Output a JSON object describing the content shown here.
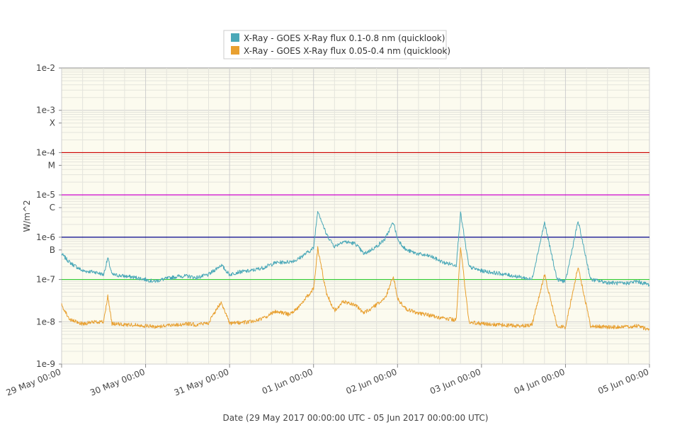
{
  "chart_data": {
    "type": "line",
    "title": "",
    "xlabel": "Date (29 May 2017 00:00:00 UTC - 05 Jun 2017 00:00:00 UTC)",
    "ylabel": "W/m^2",
    "y_scale": "log",
    "ylim": [
      "1e-9",
      "1e-2"
    ],
    "xlim": [
      "2017-05-29 00:00",
      "2017-06-05 00:00"
    ],
    "x_tick_labels": [
      "29 May 00:00",
      "30 May 00:00",
      "31 May 00:00",
      "01 Jun 00:00",
      "02 Jun 00:00",
      "03 Jun 00:00",
      "04 Jun 00:00",
      "05 Jun 00:00"
    ],
    "y_tick_labels": [
      {
        "label": "1e-2",
        "value": "1e-2"
      },
      {
        "label": "1e-3",
        "value": "1e-3"
      },
      {
        "label": "X",
        "value": "5e-4"
      },
      {
        "label": "1e-4",
        "value": "1e-4"
      },
      {
        "label": "M",
        "value": "5e-5"
      },
      {
        "label": "1e-5",
        "value": "1e-5"
      },
      {
        "label": "C",
        "value": "5e-6"
      },
      {
        "label": "1e-6",
        "value": "1e-6"
      },
      {
        "label": "B",
        "value": "5e-7"
      },
      {
        "label": "1e-7",
        "value": "1e-7"
      },
      {
        "label": "1e-8",
        "value": "1e-8"
      },
      {
        "label": "1e-9",
        "value": "1e-9"
      }
    ],
    "threshold_lines": [
      {
        "value": "1e-4",
        "color": "#cc0000"
      },
      {
        "value": "1e-5",
        "color": "#cc00cc"
      },
      {
        "value": "1e-6",
        "color": "#000088"
      },
      {
        "value": "1e-7",
        "color": "#33cc33"
      }
    ],
    "grid": true,
    "legend_position": "top-center",
    "background": "#fcfbef",
    "series": [
      {
        "name": "X-Ray - GOES X-Ray flux 0.1-0.8 nm (quicklook)",
        "color": "#4aa8b8",
        "x_days": [
          0,
          0.1,
          0.25,
          0.4,
          0.5,
          0.55,
          0.6,
          0.75,
          0.9,
          1.0,
          1.05,
          1.1,
          1.2,
          1.3,
          1.4,
          1.5,
          1.6,
          1.75,
          1.9,
          2.0,
          2.1,
          2.25,
          2.4,
          2.55,
          2.7,
          2.8,
          2.9,
          3.0,
          3.05,
          3.15,
          3.25,
          3.35,
          3.5,
          3.6,
          3.75,
          3.85,
          3.95,
          4.0,
          4.1,
          4.25,
          4.4,
          4.55,
          4.7,
          4.75,
          4.85,
          5.0,
          5.2,
          5.4,
          5.5,
          5.6,
          5.75,
          5.9,
          6.0,
          6.15,
          6.3,
          6.5,
          6.7,
          6.85,
          7.0
        ],
        "y": [
          4e-07,
          2.5e-07,
          1.6e-07,
          1.5e-07,
          1.3e-07,
          3.2e-07,
          1.3e-07,
          1.2e-07,
          1.1e-07,
          1e-07,
          9.5e-08,
          9e-08,
          1e-07,
          1.1e-07,
          1.2e-07,
          1.2e-07,
          1.1e-07,
          1.3e-07,
          2.2e-07,
          1.3e-07,
          1.5e-07,
          1.6e-07,
          1.9e-07,
          2.5e-07,
          2.6e-07,
          2.9e-07,
          4e-07,
          5.5e-07,
          4.4e-06,
          1.2e-06,
          6e-07,
          8e-07,
          7e-07,
          4e-07,
          6e-07,
          9e-07,
          2.3e-06,
          9e-07,
          5e-07,
          4e-07,
          3.5e-07,
          2.5e-07,
          2.2e-07,
          3.8e-06,
          2e-07,
          1.6e-07,
          1.4e-07,
          1.2e-07,
          1.1e-07,
          1e-07,
          2.2e-06,
          1e-07,
          9e-08,
          2.4e-06,
          1e-07,
          8.5e-08,
          8e-08,
          9e-08,
          7.5e-08
        ]
      },
      {
        "name": "X-Ray - GOES X-Ray flux 0.05-0.4 nm (quicklook)",
        "color": "#e8a030",
        "x_days": [
          0,
          0.1,
          0.25,
          0.4,
          0.5,
          0.55,
          0.6,
          0.75,
          0.9,
          1.0,
          1.05,
          1.1,
          1.2,
          1.3,
          1.4,
          1.5,
          1.6,
          1.75,
          1.9,
          2.0,
          2.1,
          2.25,
          2.4,
          2.55,
          2.7,
          2.8,
          2.9,
          3.0,
          3.05,
          3.15,
          3.25,
          3.35,
          3.5,
          3.6,
          3.75,
          3.85,
          3.95,
          4.0,
          4.1,
          4.25,
          4.4,
          4.55,
          4.7,
          4.75,
          4.85,
          5.0,
          5.2,
          5.4,
          5.5,
          5.6,
          5.75,
          5.9,
          6.0,
          6.15,
          6.3,
          6.5,
          6.7,
          6.85,
          7.0
        ],
        "y": [
          2.5e-08,
          1.1e-08,
          9e-09,
          1e-08,
          1e-08,
          4e-08,
          9e-09,
          8.5e-09,
          8.5e-09,
          8e-09,
          8e-09,
          7.5e-09,
          8e-09,
          8.5e-09,
          8.5e-09,
          9e-09,
          8.5e-09,
          9.5e-09,
          3e-08,
          9e-09,
          9.5e-09,
          1e-08,
          1.2e-08,
          1.8e-08,
          1.5e-08,
          2e-08,
          3.5e-08,
          6e-08,
          5.5e-07,
          5e-08,
          1.8e-08,
          3e-08,
          2.5e-08,
          1.6e-08,
          2.5e-08,
          3.5e-08,
          1.2e-07,
          3.5e-08,
          2e-08,
          1.6e-08,
          1.4e-08,
          1.2e-08,
          1.1e-08,
          6e-07,
          1e-08,
          9e-09,
          8.5e-09,
          8e-09,
          8e-09,
          8.5e-09,
          1.3e-07,
          8e-09,
          7.5e-09,
          2e-07,
          8e-09,
          7.5e-09,
          7.5e-09,
          8e-09,
          6.5e-09
        ]
      }
    ]
  }
}
